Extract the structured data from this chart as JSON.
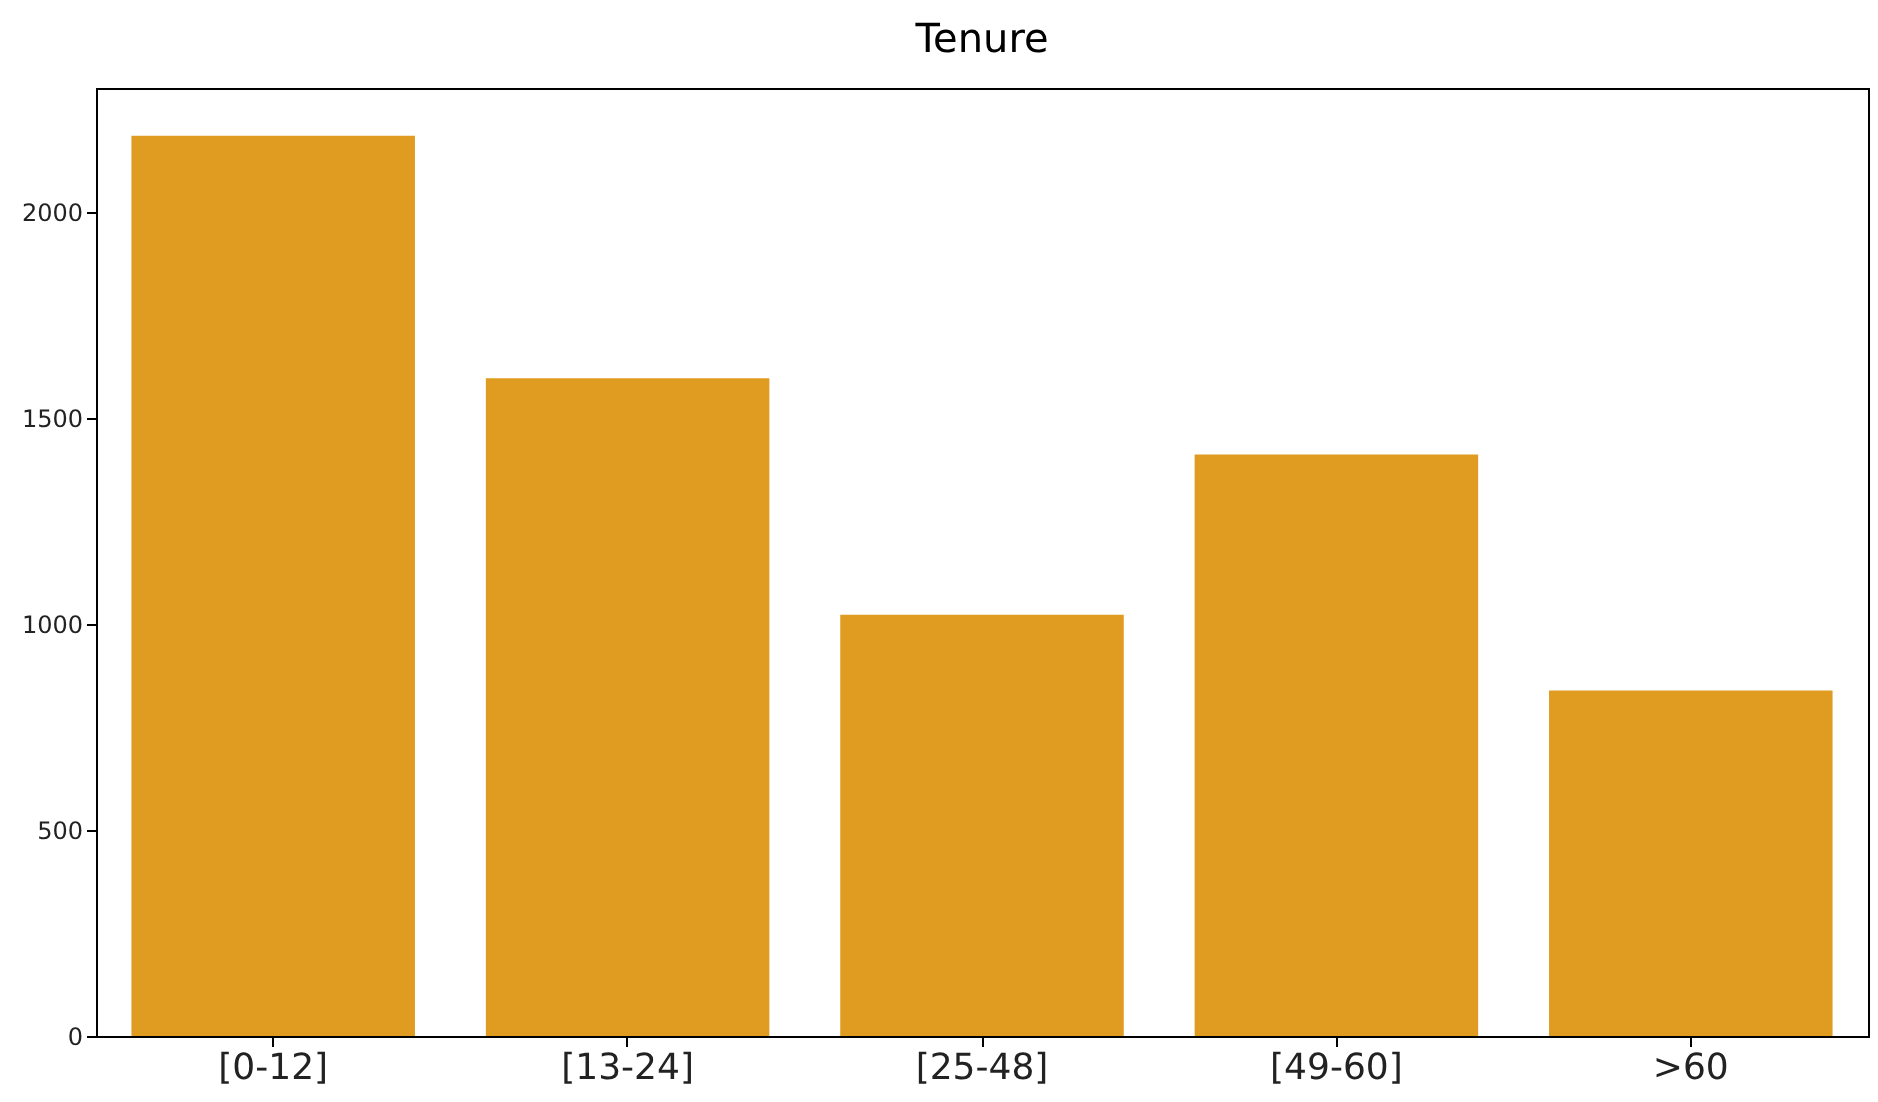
{
  "chart_data": {
    "type": "bar",
    "title": "Tenure",
    "categories": [
      "[0-12]",
      "[13-24]",
      "[25-48]",
      "[49-60]",
      ">60"
    ],
    "values": [
      2184,
      1596,
      1022,
      1411,
      838
    ],
    "color": "#e09c20",
    "ylim": [
      0,
      2300
    ],
    "yticks": [
      0,
      500,
      1000,
      1500,
      2000
    ],
    "grid": false
  }
}
